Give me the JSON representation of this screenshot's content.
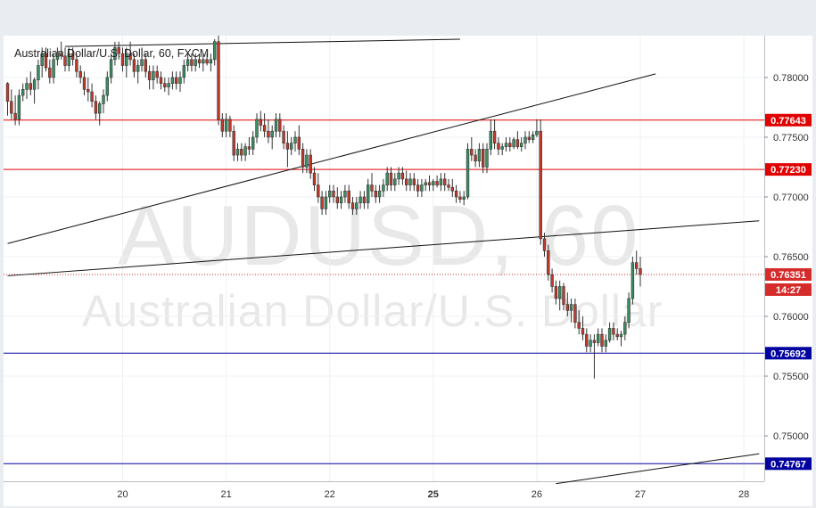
{
  "colors": {
    "up": "#3a8f63",
    "down": "#c0392b",
    "resistance": "#e00000",
    "support": "#0000a0",
    "current": "#d62b2b",
    "trendline": "#111111",
    "axis_text": "#333333",
    "grid": "#eef0f3"
  },
  "chart_data": {
    "type": "candlestick",
    "title": "Australian Dollar/U.S. Dollar, 60, FXCM",
    "watermark_symbol": "AUDUSD, 60",
    "watermark_name": "Australian Dollar/U.S. Dollar",
    "x_tick_labels": [
      {
        "label": "20",
        "bar": 30,
        "bold": false
      },
      {
        "label": "21",
        "bar": 57,
        "bold": false
      },
      {
        "label": "22",
        "bar": 84,
        "bold": false
      },
      {
        "label": "25",
        "bar": 111,
        "bold": true
      },
      {
        "label": "26",
        "bar": 138,
        "bold": false
      },
      {
        "label": "27",
        "bar": 165,
        "bold": false
      },
      {
        "label": "28",
        "bar": 192,
        "bold": false
      }
    ],
    "y_ticks": [
      "0.78000",
      "0.77500",
      "0.77000",
      "0.76500",
      "0.76000",
      "0.75500",
      "0.75000"
    ],
    "ylim": [
      0.7462,
      0.7835
    ],
    "horizontal_levels": [
      {
        "label": "0.77643",
        "value": 0.77643,
        "kind": "resistance"
      },
      {
        "label": "0.77230",
        "value": 0.7723,
        "kind": "resistance"
      },
      {
        "label": "0.75692",
        "value": 0.75692,
        "kind": "support"
      },
      {
        "label": "0.74767",
        "value": 0.74767,
        "kind": "support"
      }
    ],
    "current_price": {
      "label": "0.76351",
      "value": 0.76351,
      "countdown": "14:27"
    },
    "trendlines": [
      {
        "name": "upper-left",
        "p1": [
          15,
          0.7826
        ],
        "p2": [
          118,
          0.7832
        ]
      },
      {
        "name": "rising-channel-top",
        "p1": [
          0,
          0.7661
        ],
        "p2": [
          169,
          0.7803
        ]
      },
      {
        "name": "rising-channel-bottom",
        "p1": [
          0,
          0.7634
        ],
        "p2": [
          196,
          0.768
        ]
      },
      {
        "name": "lower-right",
        "p1": [
          143,
          0.746
        ],
        "p2": [
          196,
          0.7485
        ]
      }
    ],
    "candles": [
      [
        0.7795,
        0.7796,
        0.7768,
        0.778
      ],
      [
        0.778,
        0.779,
        0.7765,
        0.777
      ],
      [
        0.777,
        0.7785,
        0.776,
        0.7765
      ],
      [
        0.7765,
        0.779,
        0.776,
        0.7785
      ],
      [
        0.7785,
        0.7795,
        0.778,
        0.779
      ],
      [
        0.779,
        0.78,
        0.7782,
        0.7795
      ],
      [
        0.7795,
        0.7805,
        0.7785,
        0.779
      ],
      [
        0.779,
        0.78,
        0.7778,
        0.7798
      ],
      [
        0.7798,
        0.7815,
        0.779,
        0.781
      ],
      [
        0.781,
        0.7825,
        0.78,
        0.782
      ],
      [
        0.782,
        0.7825,
        0.7805,
        0.7808
      ],
      [
        0.7808,
        0.7815,
        0.7795,
        0.78
      ],
      [
        0.78,
        0.782,
        0.7795,
        0.7815
      ],
      [
        0.7815,
        0.7825,
        0.781,
        0.782
      ],
      [
        0.782,
        0.783,
        0.7815,
        0.7818
      ],
      [
        0.7818,
        0.7825,
        0.7805,
        0.781
      ],
      [
        0.781,
        0.7825,
        0.7805,
        0.782
      ],
      [
        0.782,
        0.7825,
        0.781,
        0.7815
      ],
      [
        0.7815,
        0.782,
        0.78,
        0.7805
      ],
      [
        0.7805,
        0.781,
        0.7795,
        0.78
      ],
      [
        0.78,
        0.7805,
        0.7785,
        0.779
      ],
      [
        0.779,
        0.78,
        0.778,
        0.7788
      ],
      [
        0.7788,
        0.7795,
        0.7775,
        0.778
      ],
      [
        0.778,
        0.7785,
        0.7765,
        0.777
      ],
      [
        0.777,
        0.778,
        0.776,
        0.7778
      ],
      [
        0.7778,
        0.779,
        0.777,
        0.7785
      ],
      [
        0.7785,
        0.7805,
        0.778,
        0.78
      ],
      [
        0.78,
        0.782,
        0.7795,
        0.7815
      ],
      [
        0.7815,
        0.783,
        0.781,
        0.7825
      ],
      [
        0.7825,
        0.783,
        0.7815,
        0.782
      ],
      [
        0.782,
        0.7825,
        0.7805,
        0.781
      ],
      [
        0.781,
        0.7825,
        0.78,
        0.782
      ],
      [
        0.782,
        0.783,
        0.781,
        0.7815
      ],
      [
        0.7815,
        0.782,
        0.78,
        0.7805
      ],
      [
        0.7805,
        0.7815,
        0.7795,
        0.781
      ],
      [
        0.781,
        0.7825,
        0.7805,
        0.7815
      ],
      [
        0.7815,
        0.782,
        0.78,
        0.7805
      ],
      [
        0.7805,
        0.781,
        0.779,
        0.7798
      ],
      [
        0.7798,
        0.781,
        0.779,
        0.7805
      ],
      [
        0.7805,
        0.781,
        0.7795,
        0.78
      ],
      [
        0.78,
        0.7805,
        0.779,
        0.7795
      ],
      [
        0.7795,
        0.78,
        0.7788,
        0.7792
      ],
      [
        0.7792,
        0.78,
        0.7785,
        0.7795
      ],
      [
        0.7795,
        0.7805,
        0.779,
        0.78
      ],
      [
        0.78,
        0.7805,
        0.779,
        0.7795
      ],
      [
        0.7795,
        0.7805,
        0.7788,
        0.78
      ],
      [
        0.78,
        0.7815,
        0.7795,
        0.781
      ],
      [
        0.781,
        0.782,
        0.7805,
        0.7815
      ],
      [
        0.7815,
        0.782,
        0.7805,
        0.781
      ],
      [
        0.781,
        0.782,
        0.7805,
        0.7815
      ],
      [
        0.7815,
        0.782,
        0.7808,
        0.7812
      ],
      [
        0.7812,
        0.782,
        0.7805,
        0.7815
      ],
      [
        0.7815,
        0.782,
        0.781,
        0.7812
      ],
      [
        0.7812,
        0.782,
        0.7805,
        0.7815
      ],
      [
        0.7815,
        0.7832,
        0.781,
        0.783
      ],
      [
        0.783,
        0.7835,
        0.776,
        0.7765
      ],
      [
        0.7765,
        0.777,
        0.775,
        0.7755
      ],
      [
        0.7755,
        0.777,
        0.775,
        0.7765
      ],
      [
        0.7765,
        0.7768,
        0.775,
        0.7755
      ],
      [
        0.7755,
        0.776,
        0.773,
        0.7735
      ],
      [
        0.7735,
        0.7745,
        0.773,
        0.774
      ],
      [
        0.774,
        0.7745,
        0.773,
        0.7735
      ],
      [
        0.7735,
        0.7745,
        0.773,
        0.7742
      ],
      [
        0.7742,
        0.775,
        0.7735,
        0.774
      ],
      [
        0.774,
        0.7755,
        0.7735,
        0.775
      ],
      [
        0.775,
        0.777,
        0.7745,
        0.7765
      ],
      [
        0.7765,
        0.7772,
        0.7755,
        0.776
      ],
      [
        0.776,
        0.777,
        0.775,
        0.7755
      ],
      [
        0.7755,
        0.7765,
        0.7745,
        0.775
      ],
      [
        0.775,
        0.776,
        0.774,
        0.7755
      ],
      [
        0.7755,
        0.777,
        0.775,
        0.7765
      ],
      [
        0.7765,
        0.777,
        0.775,
        0.7755
      ],
      [
        0.7755,
        0.776,
        0.774,
        0.7745
      ],
      [
        0.7745,
        0.7755,
        0.7725,
        0.774
      ],
      [
        0.774,
        0.775,
        0.7735,
        0.7745
      ],
      [
        0.7745,
        0.7755,
        0.7738,
        0.775
      ],
      [
        0.775,
        0.776,
        0.7735,
        0.774
      ],
      [
        0.774,
        0.7745,
        0.772,
        0.7725
      ],
      [
        0.7725,
        0.774,
        0.772,
        0.7735
      ],
      [
        0.7735,
        0.774,
        0.7715,
        0.772
      ],
      [
        0.772,
        0.7725,
        0.7705,
        0.771
      ],
      [
        0.771,
        0.772,
        0.7695,
        0.77
      ],
      [
        0.77,
        0.7705,
        0.7685,
        0.769
      ],
      [
        0.769,
        0.7705,
        0.7685,
        0.77
      ],
      [
        0.77,
        0.771,
        0.7695,
        0.7705
      ],
      [
        0.7705,
        0.771,
        0.7695,
        0.77
      ],
      [
        0.77,
        0.7708,
        0.769,
        0.7695
      ],
      [
        0.7695,
        0.7705,
        0.769,
        0.77
      ],
      [
        0.77,
        0.771,
        0.7695,
        0.7705
      ],
      [
        0.7705,
        0.771,
        0.769,
        0.7695
      ],
      [
        0.7695,
        0.77,
        0.7685,
        0.769
      ],
      [
        0.769,
        0.77,
        0.7685,
        0.7695
      ],
      [
        0.7695,
        0.7705,
        0.769,
        0.77
      ],
      [
        0.77,
        0.7705,
        0.769,
        0.7695
      ],
      [
        0.7695,
        0.7715,
        0.769,
        0.771
      ],
      [
        0.771,
        0.772,
        0.77,
        0.7705
      ],
      [
        0.7705,
        0.771,
        0.7695,
        0.77
      ],
      [
        0.77,
        0.771,
        0.7695,
        0.7705
      ],
      [
        0.7705,
        0.7715,
        0.77,
        0.771
      ],
      [
        0.771,
        0.7725,
        0.7705,
        0.772
      ],
      [
        0.772,
        0.7725,
        0.7705,
        0.771
      ],
      [
        0.771,
        0.772,
        0.7705,
        0.7715
      ],
      [
        0.7715,
        0.7725,
        0.771,
        0.772
      ],
      [
        0.772,
        0.7725,
        0.771,
        0.7715
      ],
      [
        0.7715,
        0.7722,
        0.7705,
        0.771
      ],
      [
        0.771,
        0.772,
        0.7705,
        0.7715
      ],
      [
        0.7715,
        0.772,
        0.7705,
        0.771
      ],
      [
        0.771,
        0.7715,
        0.77,
        0.7705
      ],
      [
        0.7705,
        0.7715,
        0.77,
        0.771
      ],
      [
        0.771,
        0.7715,
        0.7705,
        0.7712
      ],
      [
        0.7712,
        0.7718,
        0.7705,
        0.771
      ],
      [
        0.771,
        0.7715,
        0.7705,
        0.7713
      ],
      [
        0.7713,
        0.7718,
        0.7708,
        0.771
      ],
      [
        0.771,
        0.772,
        0.7705,
        0.7715
      ],
      [
        0.7715,
        0.772,
        0.7705,
        0.771
      ],
      [
        0.771,
        0.7715,
        0.7705,
        0.7708
      ],
      [
        0.7708,
        0.7715,
        0.77,
        0.7705
      ],
      [
        0.7705,
        0.771,
        0.7695,
        0.77
      ],
      [
        0.77,
        0.7705,
        0.7695,
        0.7698
      ],
      [
        0.7698,
        0.7705,
        0.7693,
        0.77
      ],
      [
        0.77,
        0.7745,
        0.7698,
        0.774
      ],
      [
        0.774,
        0.775,
        0.773,
        0.7735
      ],
      [
        0.7735,
        0.774,
        0.7725,
        0.773
      ],
      [
        0.773,
        0.7745,
        0.7725,
        0.774
      ],
      [
        0.774,
        0.7745,
        0.772,
        0.7725
      ],
      [
        0.7725,
        0.7745,
        0.772,
        0.774
      ],
      [
        0.774,
        0.7765,
        0.7735,
        0.7755
      ],
      [
        0.7755,
        0.7765,
        0.774,
        0.7745
      ],
      [
        0.7745,
        0.775,
        0.7735,
        0.774
      ],
      [
        0.774,
        0.7745,
        0.7735,
        0.7742
      ],
      [
        0.7742,
        0.775,
        0.7738,
        0.7745
      ],
      [
        0.7745,
        0.775,
        0.7738,
        0.7742
      ],
      [
        0.7742,
        0.775,
        0.774,
        0.7748
      ],
      [
        0.7748,
        0.7755,
        0.774,
        0.7742
      ],
      [
        0.7742,
        0.775,
        0.7738,
        0.7745
      ],
      [
        0.7745,
        0.7755,
        0.774,
        0.775
      ],
      [
        0.775,
        0.7755,
        0.7745,
        0.7748
      ],
      [
        0.7748,
        0.7755,
        0.7745,
        0.7752
      ],
      [
        0.7752,
        0.7765,
        0.775,
        0.7755
      ],
      [
        0.7755,
        0.7765,
        0.766,
        0.7665
      ],
      [
        0.7665,
        0.767,
        0.765,
        0.7655
      ],
      [
        0.7655,
        0.766,
        0.763,
        0.7635
      ],
      [
        0.7635,
        0.764,
        0.762,
        0.7625
      ],
      [
        0.7625,
        0.763,
        0.761,
        0.7615
      ],
      [
        0.7615,
        0.763,
        0.7605,
        0.7625
      ],
      [
        0.7625,
        0.7628,
        0.7605,
        0.761
      ],
      [
        0.761,
        0.762,
        0.76,
        0.7605
      ],
      [
        0.7605,
        0.7615,
        0.7595,
        0.761
      ],
      [
        0.761,
        0.7615,
        0.759,
        0.7595
      ],
      [
        0.7595,
        0.7605,
        0.7585,
        0.759
      ],
      [
        0.759,
        0.76,
        0.758,
        0.7585
      ],
      [
        0.7585,
        0.759,
        0.757,
        0.7575
      ],
      [
        0.7575,
        0.7585,
        0.757,
        0.758
      ],
      [
        0.758,
        0.7585,
        0.7548,
        0.7578
      ],
      [
        0.7578,
        0.759,
        0.7575,
        0.7585
      ],
      [
        0.7585,
        0.759,
        0.757,
        0.7575
      ],
      [
        0.7575,
        0.7585,
        0.757,
        0.758
      ],
      [
        0.758,
        0.7595,
        0.7578,
        0.759
      ],
      [
        0.759,
        0.7595,
        0.758,
        0.7585
      ],
      [
        0.7585,
        0.759,
        0.758,
        0.7583
      ],
      [
        0.7583,
        0.7588,
        0.7575,
        0.7585
      ],
      [
        0.7585,
        0.76,
        0.758,
        0.7595
      ],
      [
        0.7595,
        0.762,
        0.759,
        0.7615
      ],
      [
        0.7615,
        0.765,
        0.761,
        0.7645
      ],
      [
        0.7645,
        0.7655,
        0.7635,
        0.764
      ],
      [
        0.764,
        0.765,
        0.7625,
        0.76351
      ]
    ]
  }
}
